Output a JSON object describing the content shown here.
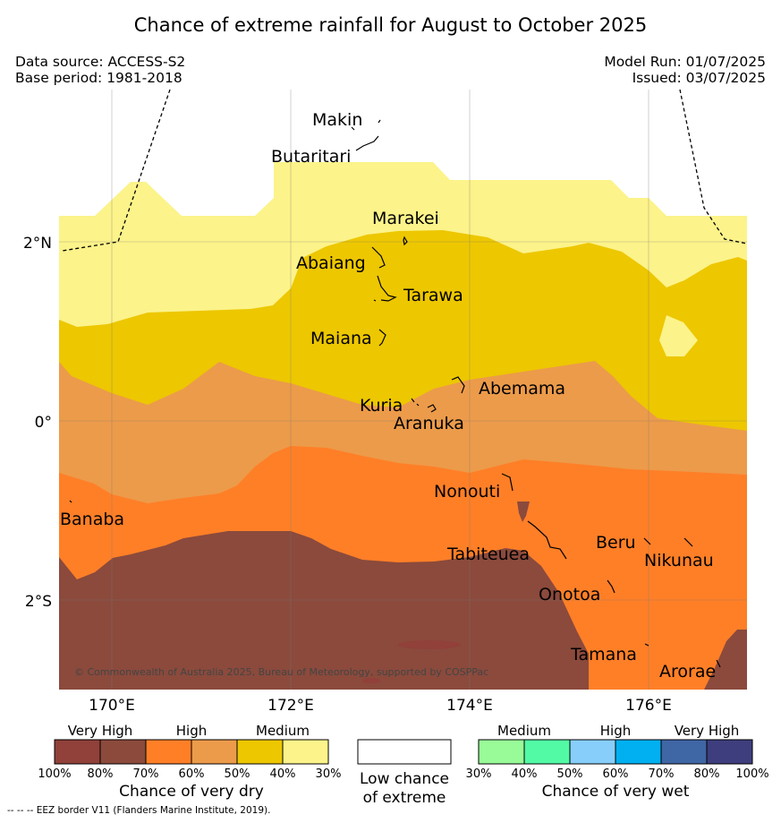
{
  "title": "Chance of extreme rainfall for August to October 2025",
  "data_source": "Data source: ACCESS-S2",
  "base_period": "Base period: 1981-2018",
  "model_run": "Model Run: 01/07/2025",
  "issued": "Issued: 03/07/2025",
  "copyright": "© Commonwealth of Australia 2025, Bureau of Meteorology, supported by COSPPac",
  "footnote": "--  --  -- EEZ border V11 (Flanders Marine Institute, 2019).",
  "axes": {
    "lat_labels": [
      "2°N",
      "0°",
      "2°S"
    ],
    "lon_labels": [
      "170°E",
      "172°E",
      "174°E",
      "176°E"
    ]
  },
  "places": {
    "makin": "Makin",
    "butaritari": "Butaritari",
    "marakei": "Marakei",
    "abaiang": "Abaiang",
    "tarawa": "Tarawa",
    "maiana": "Maiana",
    "abemama": "Abemama",
    "kuria": "Kuria",
    "aranuka": "Aranuka",
    "nonouti": "Nonouti",
    "banaba": "Banaba",
    "tabiteuea": "Tabiteuea",
    "beru": "Beru",
    "nikunau": "Nikunau",
    "onotoa": "Onotoa",
    "tamana": "Tamana",
    "arorae": "Arorae"
  },
  "colors": {
    "very_high_dry": "#8b4a3c",
    "high_dry_strong": "#ff7f27",
    "high_dry": "#ec9b4a",
    "medium_dry_strong": "#edc700",
    "medium_dry": "#fcf38a",
    "low": "#ffffff"
  },
  "legend": {
    "dry": {
      "categories": [
        "Very High",
        "High",
        "Medium"
      ],
      "colors": [
        "#91403a",
        "#8b4a3c",
        "#ff7f27",
        "#ec9b4a",
        "#edc700",
        "#fcf38a"
      ],
      "ticks": [
        "100%",
        "80%",
        "70%",
        "60%",
        "50%",
        "40%",
        "30%"
      ],
      "label": "Chance of very dry"
    },
    "low": {
      "line1": "Low chance",
      "line2": "of extreme"
    },
    "wet": {
      "categories": [
        "Medium",
        "High",
        "Very High"
      ],
      "colors": [
        "#98fb98",
        "#52faa5",
        "#87cefa",
        "#00b0f0",
        "#3f66a5",
        "#3e3e7e"
      ],
      "ticks": [
        "30%",
        "40%",
        "50%",
        "60%",
        "70%",
        "80%",
        "100%"
      ],
      "label": "Chance of very wet"
    }
  }
}
